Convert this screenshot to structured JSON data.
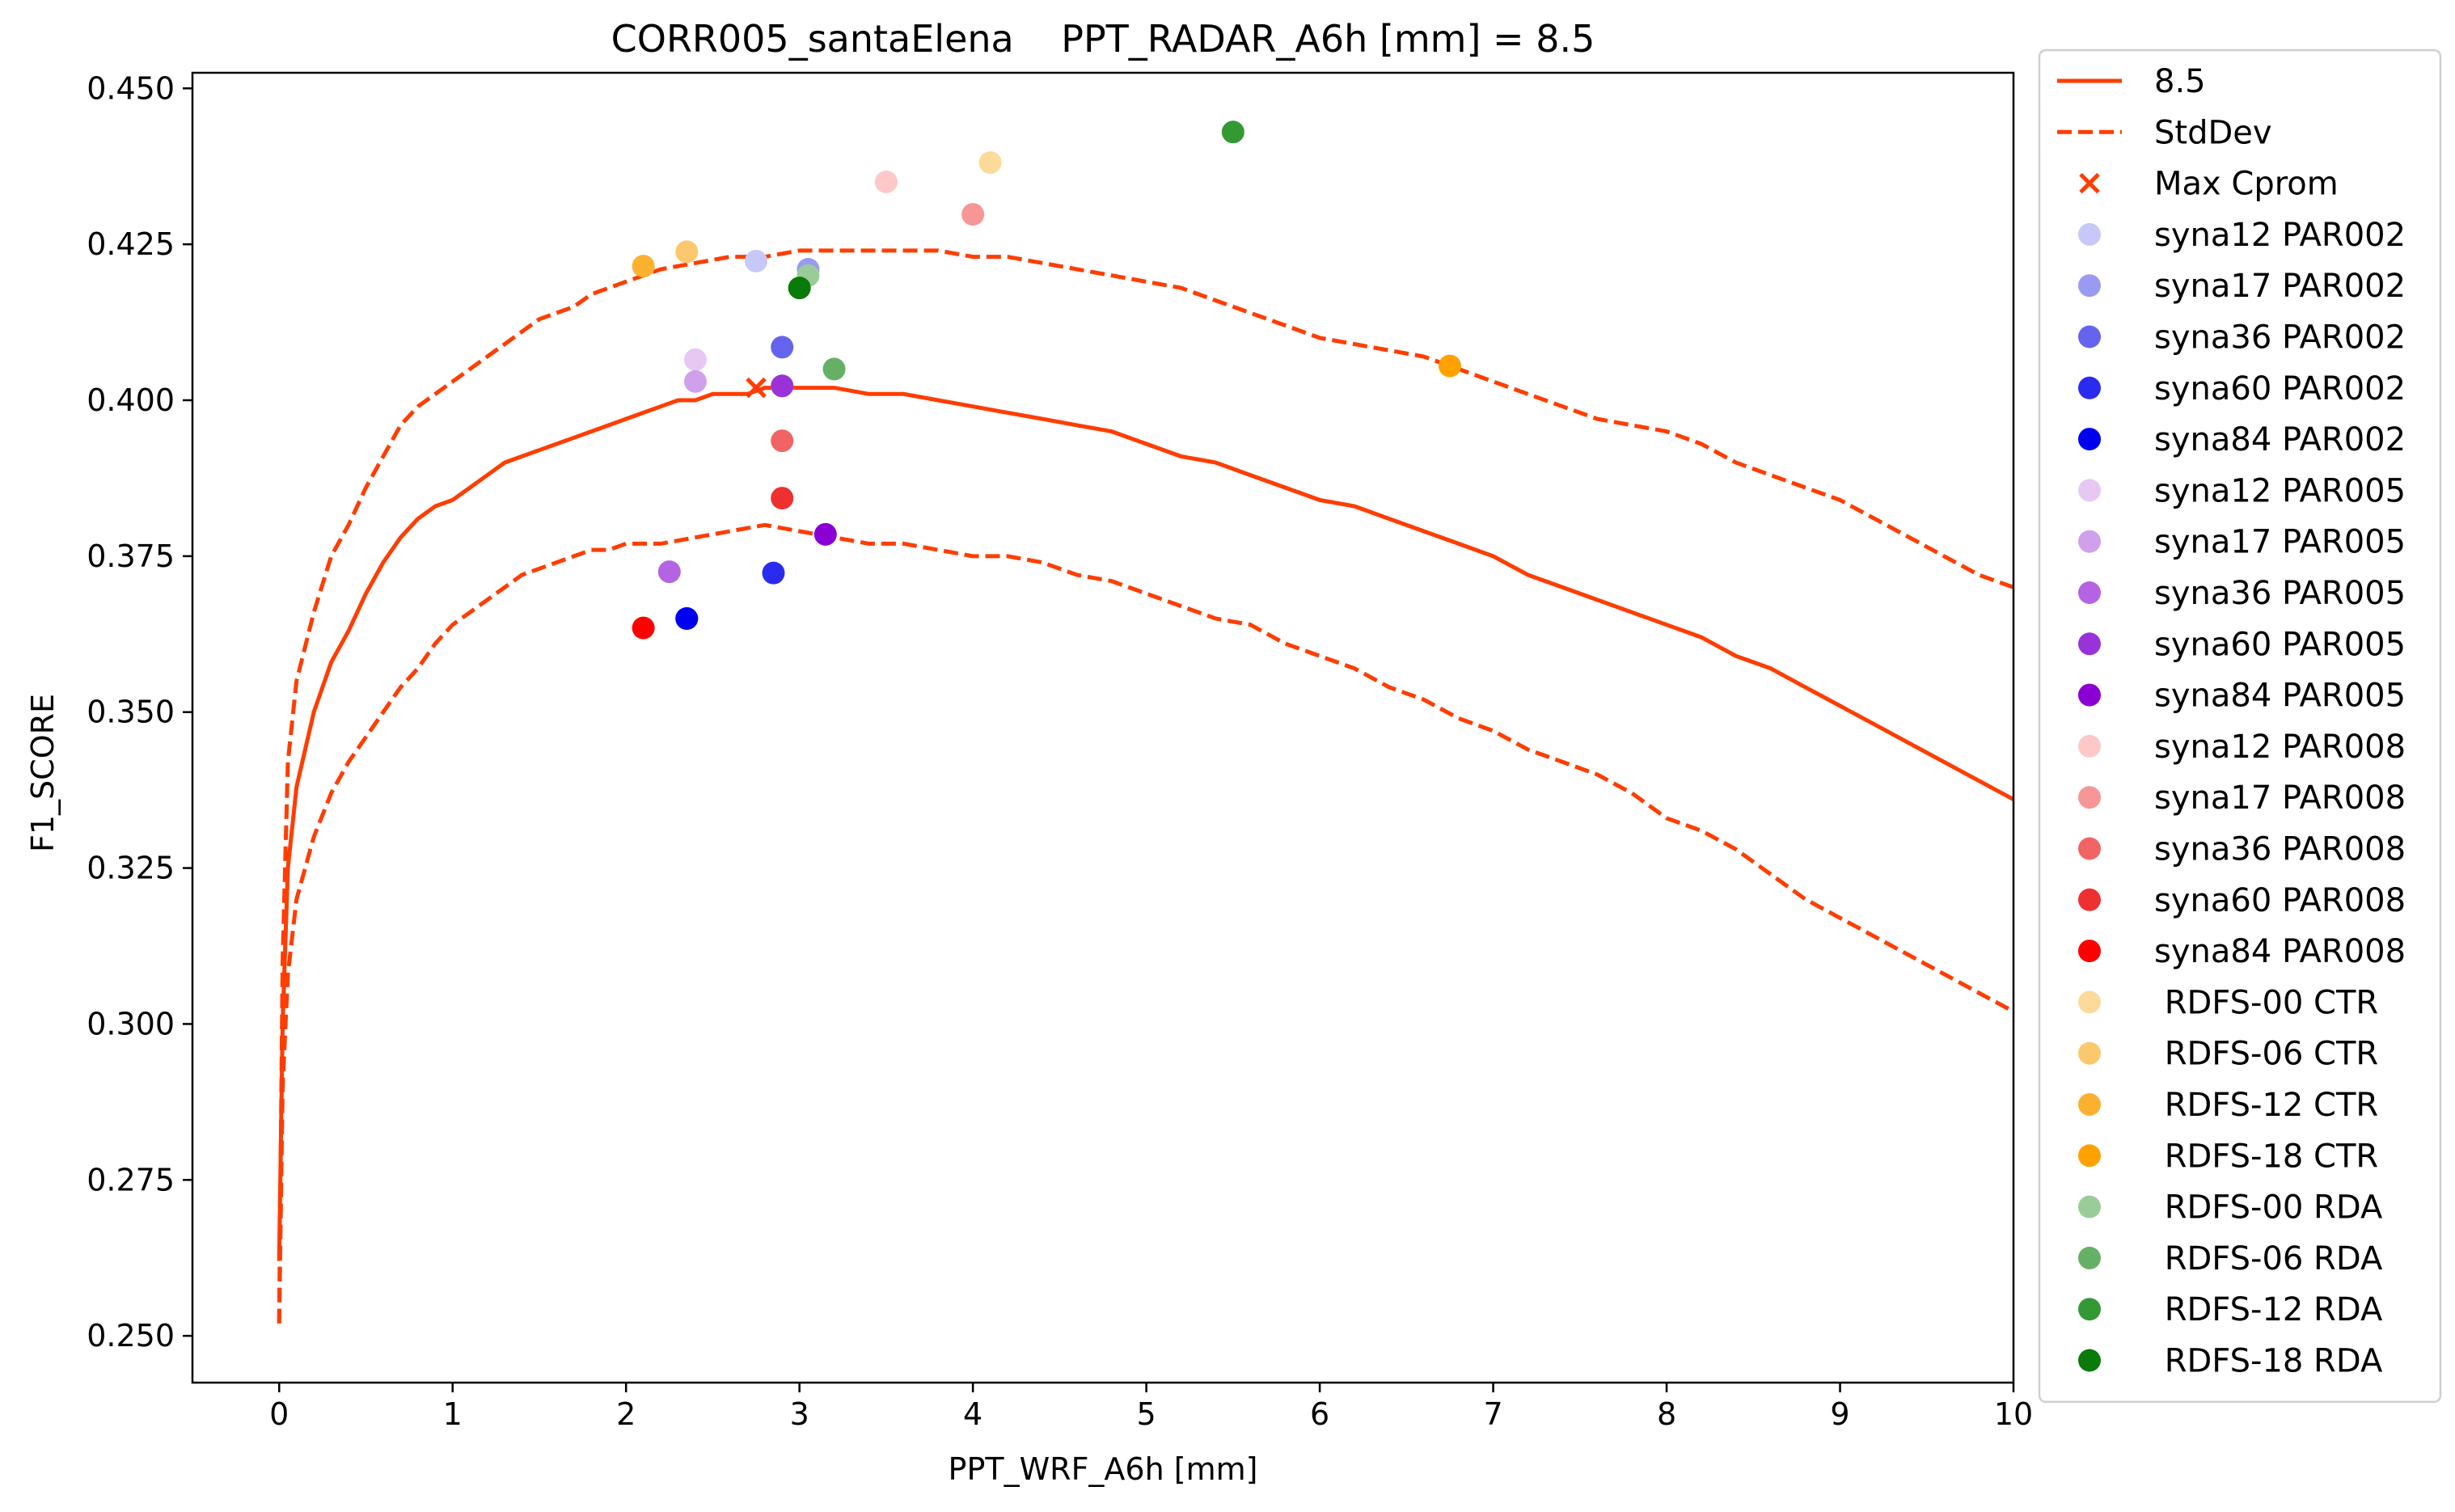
{
  "chart_data": {
    "type": "scatter",
    "title": "CORR005_santaElena    PPT_RADAR_A6h [mm] = 8.5",
    "xlabel": "PPT_WRF_A6h [mm]",
    "ylabel": "F1_SCORE",
    "xlim": [
      -0.5,
      10
    ],
    "ylim": [
      0.2425,
      0.4525
    ],
    "xticks": [
      "0",
      "1",
      "2",
      "3",
      "4",
      "5",
      "6",
      "7",
      "8",
      "9",
      "10"
    ],
    "yticks": [
      "0.250",
      "0.275",
      "0.300",
      "0.325",
      "0.350",
      "0.375",
      "0.400",
      "0.425",
      "0.450"
    ],
    "grid": false,
    "legend_position": "outside-right",
    "lines": [
      {
        "name": "8.5",
        "style": "solid",
        "color": "#ff3d00",
        "points": [
          [
            0,
            0.262
          ],
          [
            0.02,
            0.3
          ],
          [
            0.05,
            0.325
          ],
          [
            0.1,
            0.338
          ],
          [
            0.2,
            0.35
          ],
          [
            0.3,
            0.358
          ],
          [
            0.4,
            0.363
          ],
          [
            0.5,
            0.369
          ],
          [
            0.6,
            0.374
          ],
          [
            0.7,
            0.378
          ],
          [
            0.8,
            0.381
          ],
          [
            0.9,
            0.383
          ],
          [
            1.0,
            0.384
          ],
          [
            1.1,
            0.386
          ],
          [
            1.2,
            0.388
          ],
          [
            1.3,
            0.39
          ],
          [
            1.4,
            0.391
          ],
          [
            1.5,
            0.392
          ],
          [
            1.6,
            0.393
          ],
          [
            1.7,
            0.394
          ],
          [
            1.8,
            0.395
          ],
          [
            1.9,
            0.396
          ],
          [
            2.0,
            0.397
          ],
          [
            2.1,
            0.398
          ],
          [
            2.2,
            0.399
          ],
          [
            2.3,
            0.4
          ],
          [
            2.4,
            0.4
          ],
          [
            2.5,
            0.401
          ],
          [
            2.6,
            0.401
          ],
          [
            2.7,
            0.401
          ],
          [
            2.8,
            0.402
          ],
          [
            2.9,
            0.402
          ],
          [
            3.0,
            0.402
          ],
          [
            3.2,
            0.402
          ],
          [
            3.4,
            0.401
          ],
          [
            3.6,
            0.401
          ],
          [
            3.8,
            0.4
          ],
          [
            4.0,
            0.399
          ],
          [
            4.2,
            0.398
          ],
          [
            4.4,
            0.397
          ],
          [
            4.6,
            0.396
          ],
          [
            4.8,
            0.395
          ],
          [
            5.0,
            0.393
          ],
          [
            5.2,
            0.391
          ],
          [
            5.4,
            0.39
          ],
          [
            5.6,
            0.388
          ],
          [
            5.8,
            0.386
          ],
          [
            6.0,
            0.384
          ],
          [
            6.2,
            0.383
          ],
          [
            6.4,
            0.381
          ],
          [
            6.6,
            0.379
          ],
          [
            6.8,
            0.377
          ],
          [
            7.0,
            0.375
          ],
          [
            7.2,
            0.372
          ],
          [
            7.4,
            0.37
          ],
          [
            7.6,
            0.368
          ],
          [
            7.8,
            0.366
          ],
          [
            8.0,
            0.364
          ],
          [
            8.2,
            0.362
          ],
          [
            8.4,
            0.359
          ],
          [
            8.6,
            0.357
          ],
          [
            8.8,
            0.354
          ],
          [
            9.0,
            0.351
          ],
          [
            9.2,
            0.348
          ],
          [
            9.4,
            0.345
          ],
          [
            9.6,
            0.342
          ],
          [
            9.8,
            0.339
          ],
          [
            10.0,
            0.336
          ]
        ]
      },
      {
        "name": "StdDev",
        "style": "dashed",
        "color": "#ff3d00",
        "points": [
          [
            0,
            0.252
          ],
          [
            0.02,
            0.31
          ],
          [
            0.05,
            0.342
          ],
          [
            0.1,
            0.355
          ],
          [
            0.2,
            0.366
          ],
          [
            0.3,
            0.375
          ],
          [
            0.4,
            0.38
          ],
          [
            0.5,
            0.386
          ],
          [
            0.6,
            0.391
          ],
          [
            0.7,
            0.396
          ],
          [
            0.8,
            0.399
          ],
          [
            0.9,
            0.401
          ],
          [
            1.0,
            0.403
          ],
          [
            1.1,
            0.405
          ],
          [
            1.2,
            0.407
          ],
          [
            1.3,
            0.409
          ],
          [
            1.4,
            0.411
          ],
          [
            1.5,
            0.413
          ],
          [
            1.6,
            0.414
          ],
          [
            1.7,
            0.415
          ],
          [
            1.8,
            0.417
          ],
          [
            1.9,
            0.418
          ],
          [
            2.0,
            0.419
          ],
          [
            2.2,
            0.421
          ],
          [
            2.4,
            0.422
          ],
          [
            2.6,
            0.423
          ],
          [
            2.8,
            0.423
          ],
          [
            3.0,
            0.424
          ],
          [
            3.2,
            0.424
          ],
          [
            3.4,
            0.424
          ],
          [
            3.6,
            0.424
          ],
          [
            3.8,
            0.424
          ],
          [
            4.0,
            0.423
          ],
          [
            4.2,
            0.423
          ],
          [
            4.4,
            0.422
          ],
          [
            4.6,
            0.421
          ],
          [
            4.8,
            0.42
          ],
          [
            5.0,
            0.419
          ],
          [
            5.2,
            0.418
          ],
          [
            5.4,
            0.416
          ],
          [
            5.6,
            0.414
          ],
          [
            5.8,
            0.412
          ],
          [
            6.0,
            0.41
          ],
          [
            6.2,
            0.409
          ],
          [
            6.4,
            0.408
          ],
          [
            6.6,
            0.407
          ],
          [
            6.8,
            0.405
          ],
          [
            7.0,
            0.403
          ],
          [
            7.2,
            0.401
          ],
          [
            7.4,
            0.399
          ],
          [
            7.6,
            0.397
          ],
          [
            7.8,
            0.396
          ],
          [
            8.0,
            0.395
          ],
          [
            8.2,
            0.393
          ],
          [
            8.4,
            0.39
          ],
          [
            8.6,
            0.388
          ],
          [
            8.8,
            0.386
          ],
          [
            9.0,
            0.384
          ],
          [
            9.2,
            0.381
          ],
          [
            9.4,
            0.378
          ],
          [
            9.6,
            0.375
          ],
          [
            9.8,
            0.372
          ],
          [
            10.0,
            0.37
          ]
        ]
      },
      {
        "name": "",
        "style": "dashed",
        "color": "#ff3d00",
        "points": [
          [
            0,
            0.252
          ],
          [
            0.02,
            0.29
          ],
          [
            0.05,
            0.308
          ],
          [
            0.1,
            0.32
          ],
          [
            0.2,
            0.33
          ],
          [
            0.3,
            0.337
          ],
          [
            0.4,
            0.342
          ],
          [
            0.5,
            0.346
          ],
          [
            0.6,
            0.35
          ],
          [
            0.7,
            0.354
          ],
          [
            0.8,
            0.357
          ],
          [
            0.9,
            0.361
          ],
          [
            1.0,
            0.364
          ],
          [
            1.1,
            0.366
          ],
          [
            1.2,
            0.368
          ],
          [
            1.3,
            0.37
          ],
          [
            1.4,
            0.372
          ],
          [
            1.5,
            0.373
          ],
          [
            1.6,
            0.374
          ],
          [
            1.7,
            0.375
          ],
          [
            1.8,
            0.376
          ],
          [
            1.9,
            0.376
          ],
          [
            2.0,
            0.377
          ],
          [
            2.2,
            0.377
          ],
          [
            2.4,
            0.378
          ],
          [
            2.6,
            0.379
          ],
          [
            2.8,
            0.38
          ],
          [
            3.0,
            0.379
          ],
          [
            3.2,
            0.378
          ],
          [
            3.4,
            0.377
          ],
          [
            3.6,
            0.377
          ],
          [
            3.8,
            0.376
          ],
          [
            4.0,
            0.375
          ],
          [
            4.2,
            0.375
          ],
          [
            4.4,
            0.374
          ],
          [
            4.6,
            0.372
          ],
          [
            4.8,
            0.371
          ],
          [
            5.0,
            0.369
          ],
          [
            5.2,
            0.367
          ],
          [
            5.4,
            0.365
          ],
          [
            5.6,
            0.364
          ],
          [
            5.8,
            0.361
          ],
          [
            6.0,
            0.359
          ],
          [
            6.2,
            0.357
          ],
          [
            6.4,
            0.354
          ],
          [
            6.6,
            0.352
          ],
          [
            6.8,
            0.349
          ],
          [
            7.0,
            0.347
          ],
          [
            7.2,
            0.344
          ],
          [
            7.4,
            0.342
          ],
          [
            7.6,
            0.34
          ],
          [
            7.8,
            0.337
          ],
          [
            8.0,
            0.333
          ],
          [
            8.2,
            0.331
          ],
          [
            8.4,
            0.328
          ],
          [
            8.6,
            0.324
          ],
          [
            8.8,
            0.32
          ],
          [
            9.0,
            0.317
          ],
          [
            9.2,
            0.314
          ],
          [
            9.4,
            0.311
          ],
          [
            9.6,
            0.308
          ],
          [
            9.8,
            0.305
          ],
          [
            10.0,
            0.302
          ]
        ]
      }
    ],
    "max_marker": {
      "name": "Max Cprom",
      "x": 2.75,
      "y": 0.402,
      "color": "#ff3d00"
    },
    "series": [
      {
        "name": "syna12 PAR002",
        "color": "#c8c8f8",
        "x": 2.75,
        "y": 0.4223
      },
      {
        "name": "syna17 PAR002",
        "color": "#9a9af2",
        "x": 3.05,
        "y": 0.421
      },
      {
        "name": "syna36 PAR002",
        "color": "#6464ee",
        "x": 2.9,
        "y": 0.4085
      },
      {
        "name": "syna60 PAR002",
        "color": "#2b2bef",
        "x": 2.35,
        "y": 0.365
      },
      {
        "name": "syna60 PAR002",
        "color": "#2b2bef",
        "x": 2.85,
        "y": 0.3723
      },
      {
        "name": "syna84 PAR002",
        "color": "#0000f0",
        "x": 2.35,
        "y": 0.365
      },
      {
        "name": "syna12 PAR005",
        "color": "#e6c8f2",
        "x": 2.4,
        "y": 0.4065
      },
      {
        "name": "syna17 PAR005",
        "color": "#d0a0ec",
        "x": 2.4,
        "y": 0.403
      },
      {
        "name": "syna17 PAR005",
        "color": "#d0a0ec",
        "x": 2.9,
        "y": 0.4023
      },
      {
        "name": "syna36 PAR005",
        "color": "#b463e2",
        "x": 2.25,
        "y": 0.3725
      },
      {
        "name": "syna60 PAR005",
        "color": "#9a32d9",
        "x": 2.9,
        "y": 0.4023
      },
      {
        "name": "syna84 PAR005",
        "color": "#8a00d4",
        "x": 3.15,
        "y": 0.3785
      },
      {
        "name": "syna12 PAR008",
        "color": "#fcc8c8",
        "x": 3.5,
        "y": 0.435
      },
      {
        "name": "syna17 PAR008",
        "color": "#f79696",
        "x": 4.0,
        "y": 0.4298
      },
      {
        "name": "syna36 PAR008",
        "color": "#f26464",
        "x": 2.9,
        "y": 0.3935
      },
      {
        "name": "syna60 PAR008",
        "color": "#ef3030",
        "x": 2.9,
        "y": 0.3843
      },
      {
        "name": "syna84 PAR008",
        "color": "#ff0000",
        "x": 2.1,
        "y": 0.3635
      },
      {
        "name": "RDFS-00 CTR",
        "color": "#fcdb9a",
        "x": 4.1,
        "y": 0.4381
      },
      {
        "name": "RDFS-06 CTR",
        "color": "#fcc86e",
        "x": 2.35,
        "y": 0.4238
      },
      {
        "name": "RDFS-12 CTR",
        "color": "#fbb030",
        "x": 2.1,
        "y": 0.4215
      },
      {
        "name": "RDFS-18 CTR",
        "color": "#ffa200",
        "x": 6.75,
        "y": 0.4055
      },
      {
        "name": "RDFS-00 RDA",
        "color": "#9acc9a",
        "x": 3.05,
        "y": 0.42
      },
      {
        "name": "RDFS-06 RDA",
        "color": "#66b066",
        "x": 3.2,
        "y": 0.405
      },
      {
        "name": "RDFS-12 RDA",
        "color": "#339933",
        "x": 5.5,
        "y": 0.443
      },
      {
        "name": "RDFS-18 RDA",
        "color": "#0a7a0a",
        "x": 3.0,
        "y": 0.418
      }
    ],
    "legend": [
      {
        "label": "8.5",
        "kind": "line",
        "color": "#ff3d00"
      },
      {
        "label": "StdDev",
        "kind": "dashed",
        "color": "#ff3d00"
      },
      {
        "label": "Max Cprom",
        "kind": "cross",
        "color": "#ff3d00"
      },
      {
        "label": "syna12 PAR002",
        "kind": "dot",
        "color": "#c8c8f8"
      },
      {
        "label": "syna17 PAR002",
        "kind": "dot",
        "color": "#9a9af2"
      },
      {
        "label": "syna36 PAR002",
        "kind": "dot",
        "color": "#6464ee"
      },
      {
        "label": "syna60 PAR002",
        "kind": "dot",
        "color": "#2b2bef"
      },
      {
        "label": "syna84 PAR002",
        "kind": "dot",
        "color": "#0000f0"
      },
      {
        "label": "syna12 PAR005",
        "kind": "dot",
        "color": "#e6c8f2"
      },
      {
        "label": "syna17 PAR005",
        "kind": "dot",
        "color": "#d0a0ec"
      },
      {
        "label": "syna36 PAR005",
        "kind": "dot",
        "color": "#b463e2"
      },
      {
        "label": "syna60 PAR005",
        "kind": "dot",
        "color": "#9a32d9"
      },
      {
        "label": "syna84 PAR005",
        "kind": "dot",
        "color": "#8a00d4"
      },
      {
        "label": "syna12 PAR008",
        "kind": "dot",
        "color": "#fcc8c8"
      },
      {
        "label": "syna17 PAR008",
        "kind": "dot",
        "color": "#f79696"
      },
      {
        "label": "syna36 PAR008",
        "kind": "dot",
        "color": "#f26464"
      },
      {
        "label": "syna60 PAR008",
        "kind": "dot",
        "color": "#ef3030"
      },
      {
        "label": "syna84 PAR008",
        "kind": "dot",
        "color": "#ff0000"
      },
      {
        "label": " RDFS-00 CTR",
        "kind": "dot",
        "color": "#fcdb9a"
      },
      {
        "label": " RDFS-06 CTR",
        "kind": "dot",
        "color": "#fcc86e"
      },
      {
        "label": " RDFS-12 CTR",
        "kind": "dot",
        "color": "#fbb030"
      },
      {
        "label": " RDFS-18 CTR",
        "kind": "dot",
        "color": "#ffa200"
      },
      {
        "label": " RDFS-00 RDA",
        "kind": "dot",
        "color": "#9acc9a"
      },
      {
        "label": " RDFS-06 RDA",
        "kind": "dot",
        "color": "#66b066"
      },
      {
        "label": " RDFS-12 RDA",
        "kind": "dot",
        "color": "#339933"
      },
      {
        "label": " RDFS-18 RDA",
        "kind": "dot",
        "color": "#0a7a0a"
      }
    ]
  }
}
